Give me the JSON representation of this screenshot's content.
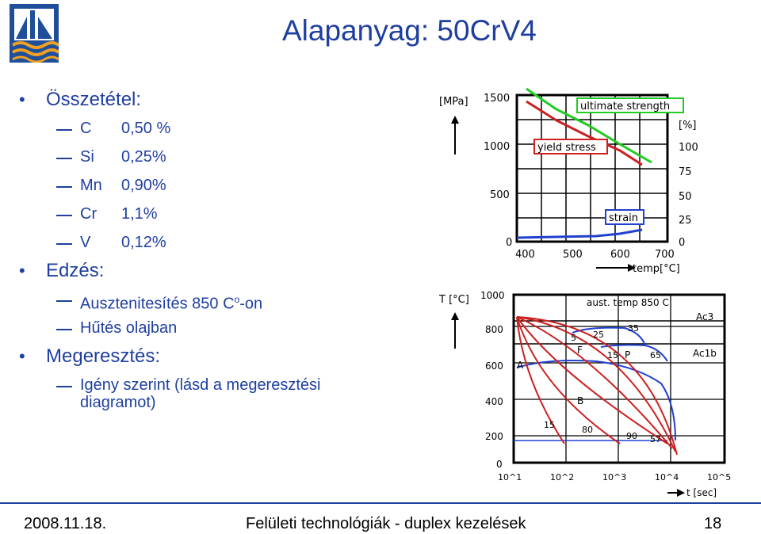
{
  "title": "Alapanyag: 50CrV4",
  "composition": {
    "heading": "Összetétel:",
    "items": [
      {
        "el": "C",
        "val": "0,50 %"
      },
      {
        "el": "Si",
        "val": "0,25%"
      },
      {
        "el": "Mn",
        "val": "0,90%"
      },
      {
        "el": "Cr",
        "val": "1,1%"
      },
      {
        "el": "V",
        "val": "0,12%"
      }
    ]
  },
  "hardening": {
    "heading": "Edzés:",
    "austenitize_pre": "Ausztenitesítés 850 C",
    "austenitize_sup": "o",
    "austenitize_post": "-on",
    "cooling": "Hűtés olajban"
  },
  "tempering": {
    "heading": "Megeresztés:",
    "line1": "Igény szerint (lásd a megeresztési",
    "line2": "diagramot)"
  },
  "chart_top": {
    "unit_left": "[MPa]",
    "unit_right": "[%]",
    "y_left_ticks": [
      "1500",
      "1000",
      "500",
      "0"
    ],
    "y_right_ticks": [
      "100",
      "75",
      "50",
      "25",
      "0"
    ],
    "x_ticks": [
      "400",
      "500",
      "600",
      "700"
    ],
    "x_label": "temp[°C]",
    "labels": {
      "uts": "ultimate strength",
      "ys": "yield stress",
      "strain": "strain"
    },
    "colors": {
      "uts": "#22cc22",
      "ys": "#cc2020",
      "strain": "#2040d0"
    }
  },
  "chart_bottom": {
    "y_label": "T [°C]",
    "y_ticks": [
      "1000",
      "800",
      "600",
      "400",
      "200",
      "0"
    ],
    "x_ticks": [
      "10^1",
      "10^2",
      "10^3",
      "10^4",
      "10^5"
    ],
    "x_label": "t [sec]",
    "note": "aust. temp 850 C",
    "region_labels": [
      "Ac3",
      "Ac1b",
      "A",
      "F",
      "P",
      "B"
    ],
    "number_labels": [
      "5",
      "25",
      "35",
      "15",
      "65",
      "15",
      "80",
      "90",
      "57"
    ]
  },
  "footer": {
    "date": "2008.11.18.",
    "center": "Felületi technológiák - duplex kezelések",
    "page": "18"
  }
}
